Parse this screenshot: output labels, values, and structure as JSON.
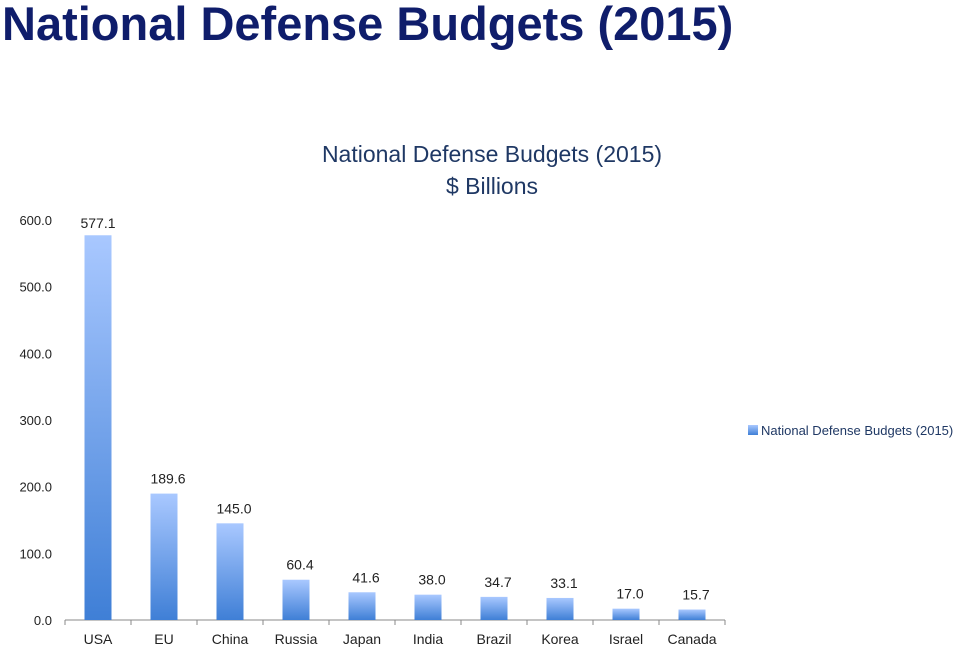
{
  "slide": {
    "title": "National Defense Budgets (2015)"
  },
  "colors": {
    "bar_top": "#a9c8ff",
    "bar_bottom": "#3f7fd6",
    "axis": "#888888",
    "title": "#0f1d6b"
  },
  "chart_data": {
    "type": "bar",
    "title_line1": "National Defense Budgets (2015)",
    "title_line2": "$ Billions",
    "categories": [
      "USA",
      "EU",
      "China",
      "Russia",
      "Japan",
      "India",
      "Brazil",
      "Korea",
      "Israel",
      "Canada"
    ],
    "values": [
      577.1,
      189.6,
      145.0,
      60.4,
      41.6,
      38.0,
      34.7,
      33.1,
      17.0,
      15.7
    ],
    "value_labels": [
      "577.1",
      "189.6",
      "145.0",
      "60.4",
      "41.6",
      "38.0",
      "34.7",
      "33.1",
      "17.0",
      "15.7"
    ],
    "y_ticks": [
      "0.0",
      "100.0",
      "200.0",
      "300.0",
      "400.0",
      "500.0",
      "600.0"
    ],
    "ylim": [
      0,
      600
    ],
    "legend": "National Defense Budgets (2015)",
    "legend_position": "right",
    "grid": false
  }
}
